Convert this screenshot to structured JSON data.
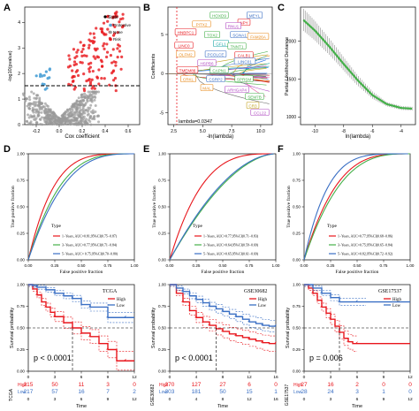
{
  "panels": {
    "A": {
      "letter": "A",
      "ylabel": "-log10(pvalue)",
      "xlabel": "Cox coefficient",
      "xticks": [
        "-0.2",
        "0.0",
        "0.2",
        "0.4",
        "0.6"
      ],
      "yticks": [
        "0",
        "1",
        "2",
        "3",
        "4"
      ],
      "legend": [
        "State",
        "Protective",
        "None",
        "Risk"
      ]
    },
    "B": {
      "letter": "B",
      "ylabel": "Coefficients",
      "xlabel": "-ln(lambda)",
      "xticks": [
        "2.5",
        "5.0",
        "7.5",
        "10.0"
      ],
      "yticks": [
        "5",
        "0",
        "-5"
      ],
      "lambda_label": "lambda=0.0347",
      "genes": [
        "HOXD9",
        "MEYL",
        "NPY",
        "PITX2",
        "RNU1",
        "HNBPC1",
        "TOX2",
        "SGNA1",
        "FAM26A",
        "GFL1",
        "LINC0",
        "TNNT1",
        "OLFM2",
        "PCOLCE",
        "CALB1",
        "HSPB6",
        "LINC01",
        "TMEM86",
        "CAPN1",
        "CRKL",
        "CSRP2",
        "SPRSM",
        "MAL",
        "ARHGAP4",
        "SEM7B",
        "CR3",
        "CCL22"
      ]
    },
    "C": {
      "letter": "C",
      "ylabel": "Partial Likelihood Deviance",
      "xlabel": "ln(lambda)",
      "xticks": [
        "-10",
        "-8",
        "-6",
        "-4"
      ],
      "yticks": [
        "1000",
        "1500",
        "2000"
      ]
    },
    "D": {
      "letter": "D",
      "ylabel": "True positive fraction",
      "xlabel": "False positive fraction",
      "type_label": "Type",
      "legend": [
        "1−Years, AUC=0.81,95%CI(0.75−0.87)",
        "3−Years, AUC=0.77,95%CI(0.71−0.84)",
        "5−Years, AUC= 0.75,95%CI(0.70−0.80)"
      ]
    },
    "E": {
      "letter": "E",
      "ylabel": "True positive fraction",
      "xlabel": "False positive fraction",
      "type_label": "Type",
      "legend": [
        "1−Years, AUC=0.77,95%CI(0.71−0.83)",
        "3−Years, AUC=0.64,95%CI(0.59−0.69)",
        "5−Years, AUC=0.65,95%CI(0.61−0.69)"
      ]
    },
    "F": {
      "letter": "F",
      "ylabel": "True positive fraction",
      "xlabel": "False positive fraction",
      "type_label": "Type",
      "legend": [
        "1−Years, AUC=0.77,95%CI(0.68−0.86)",
        "3−Years, AUC=0.75,95%CI(0.65−0.84)",
        "5−Years, AUC=0.82,95%CI(0.72−0.92)"
      ]
    },
    "G": {
      "title": "TCGA",
      "pval": "p < 0.0001",
      "ylabel": "Survival probability",
      "xlabel": "Time",
      "risk_label": "TCGA",
      "xticks": [
        "0",
        "3",
        "6",
        "9",
        "12"
      ],
      "risk_high": [
        "215",
        "50",
        "11",
        "3",
        "0"
      ],
      "risk_low": [
        "217",
        "57",
        "16",
        "7",
        "2"
      ]
    },
    "H": {
      "title": "GSE30682",
      "pval": "p < 0.0001",
      "ylabel": "Survival probability",
      "xlabel": "Time",
      "risk_label": "GSE30682",
      "xticks": [
        "0",
        "4",
        "8",
        "12",
        "16"
      ],
      "risk_high": [
        "270",
        "127",
        "27",
        "6",
        "0"
      ],
      "risk_low": [
        "303",
        "181",
        "50",
        "15",
        "1"
      ]
    },
    "I": {
      "title": "GSE17537",
      "pval": "p = 0.006",
      "ylabel": "Survival probability",
      "xlabel": "Time",
      "risk_label": "GSE17537",
      "xticks": [
        "0",
        "3",
        "6",
        "9",
        "12"
      ],
      "risk_high": [
        "27",
        "16",
        "2",
        "0",
        "0"
      ],
      "risk_low": [
        "28",
        "24",
        "3",
        "1",
        "0"
      ]
    }
  },
  "km_legend": {
    "high": "High",
    "low": "Low"
  },
  "roc_ticks": [
    "0.00",
    "0.25",
    "0.50",
    "0.75",
    "1.00"
  ],
  "km_yticks": [
    "0.00",
    "0.25",
    "0.50",
    "0.75",
    "1.00"
  ],
  "colors": {
    "red": "#e8161c",
    "blue": "#3a6fc4",
    "green": "#45b04a",
    "grey": "#9a9a9a",
    "lightblue": "#58a7d9",
    "black": "#000000"
  },
  "chart_data": [
    {
      "type": "scatter",
      "panel": "A",
      "xlabel": "Cox coefficient",
      "ylabel": "-log10(pvalue)",
      "xlim": [
        -0.3,
        0.7
      ],
      "ylim": [
        0,
        4.6
      ],
      "series": [
        {
          "name": "Protective"
        },
        {
          "name": "None"
        },
        {
          "name": "Risk"
        }
      ],
      "threshold_y": 1.3
    },
    {
      "type": "line",
      "panel": "B",
      "xlabel": "-ln(lambda)",
      "ylabel": "Coefficients",
      "xlim": [
        2,
        11
      ],
      "ylim": [
        -6.5,
        8.5
      ],
      "lambda_line_x": 3.36
    },
    {
      "type": "line",
      "panel": "C",
      "xlabel": "ln(lambda)",
      "ylabel": "Partial Likelihood Deviance",
      "xlim": [
        -11,
        -3
      ],
      "ylim": [
        900,
        2450
      ],
      "x": [
        -10.8,
        -10,
        -9,
        -8,
        -7,
        -6,
        -5,
        -4,
        -3.2
      ],
      "values": [
        2280,
        2140,
        1930,
        1700,
        1480,
        1290,
        1170,
        1120,
        1110
      ]
    },
    {
      "type": "line",
      "panel": "D",
      "xlabel": "False positive fraction",
      "ylabel": "True positive fraction",
      "auc": [
        0.81,
        0.77,
        0.75
      ]
    },
    {
      "type": "line",
      "panel": "E",
      "xlabel": "False positive fraction",
      "ylabel": "True positive fraction",
      "auc": [
        0.77,
        0.64,
        0.65
      ]
    },
    {
      "type": "line",
      "panel": "F",
      "xlabel": "False positive fraction",
      "ylabel": "True positive fraction",
      "auc": [
        0.77,
        0.75,
        0.82
      ]
    },
    {
      "type": "line",
      "panel": "G",
      "xlabel": "Time",
      "ylabel": "Survival probability",
      "xlim": [
        0,
        12
      ],
      "ylim": [
        0,
        1
      ],
      "series": [
        {
          "name": "High",
          "x": [
            0,
            0.5,
            1,
            1.5,
            2,
            2.5,
            3,
            4,
            5,
            6,
            7,
            8,
            9,
            10,
            11,
            12
          ],
          "values": [
            1,
            0.95,
            0.88,
            0.8,
            0.74,
            0.68,
            0.63,
            0.56,
            0.5,
            0.44,
            0.4,
            0.32,
            0.25,
            0.12,
            0.12,
            0.12
          ]
        },
        {
          "name": "Low",
          "x": [
            0,
            0.5,
            1,
            2,
            3,
            4,
            5,
            6,
            7,
            8,
            9,
            10,
            11,
            12
          ],
          "values": [
            1,
            0.99,
            0.97,
            0.94,
            0.9,
            0.87,
            0.84,
            0.77,
            0.74,
            0.74,
            0.62,
            0.62,
            0.62,
            0.62
          ]
        }
      ]
    },
    {
      "type": "line",
      "panel": "H",
      "xlabel": "Time",
      "ylabel": "Survival probability",
      "xlim": [
        0,
        16
      ],
      "ylim": [
        0,
        1
      ],
      "series": [
        {
          "name": "High",
          "x": [
            0,
            1,
            2,
            3,
            4,
            5,
            6,
            7,
            8,
            9,
            10,
            11,
            12,
            13,
            14,
            15,
            16
          ],
          "values": [
            1,
            0.9,
            0.8,
            0.7,
            0.62,
            0.57,
            0.53,
            0.49,
            0.46,
            0.43,
            0.41,
            0.39,
            0.37,
            0.35,
            0.33,
            0.32,
            0.32
          ]
        },
        {
          "name": "Low",
          "x": [
            0,
            1,
            2,
            3,
            4,
            5,
            6,
            7,
            8,
            9,
            10,
            11,
            12,
            13,
            14,
            15,
            16
          ],
          "values": [
            1,
            0.96,
            0.92,
            0.87,
            0.83,
            0.79,
            0.75,
            0.72,
            0.69,
            0.66,
            0.63,
            0.6,
            0.57,
            0.55,
            0.53,
            0.52,
            0.52
          ]
        }
      ]
    },
    {
      "type": "line",
      "panel": "I",
      "xlabel": "Time",
      "ylabel": "Survival probability",
      "xlim": [
        0,
        12
      ],
      "ylim": [
        0,
        1
      ],
      "series": [
        {
          "name": "High",
          "x": [
            0,
            0.5,
            1,
            1.5,
            2,
            2.5,
            3,
            3.5,
            4,
            4.5,
            5,
            5.5,
            6
          ],
          "values": [
            1,
            0.96,
            0.9,
            0.82,
            0.74,
            0.67,
            0.6,
            0.52,
            0.45,
            0.38,
            0.34,
            0.32,
            0.32
          ]
        },
        {
          "name": "Low",
          "x": [
            0,
            1,
            2,
            3,
            4,
            5,
            6,
            7
          ],
          "values": [
            1,
            0.96,
            0.9,
            0.85,
            0.8,
            0.8,
            0.8,
            0.8
          ]
        }
      ]
    }
  ]
}
